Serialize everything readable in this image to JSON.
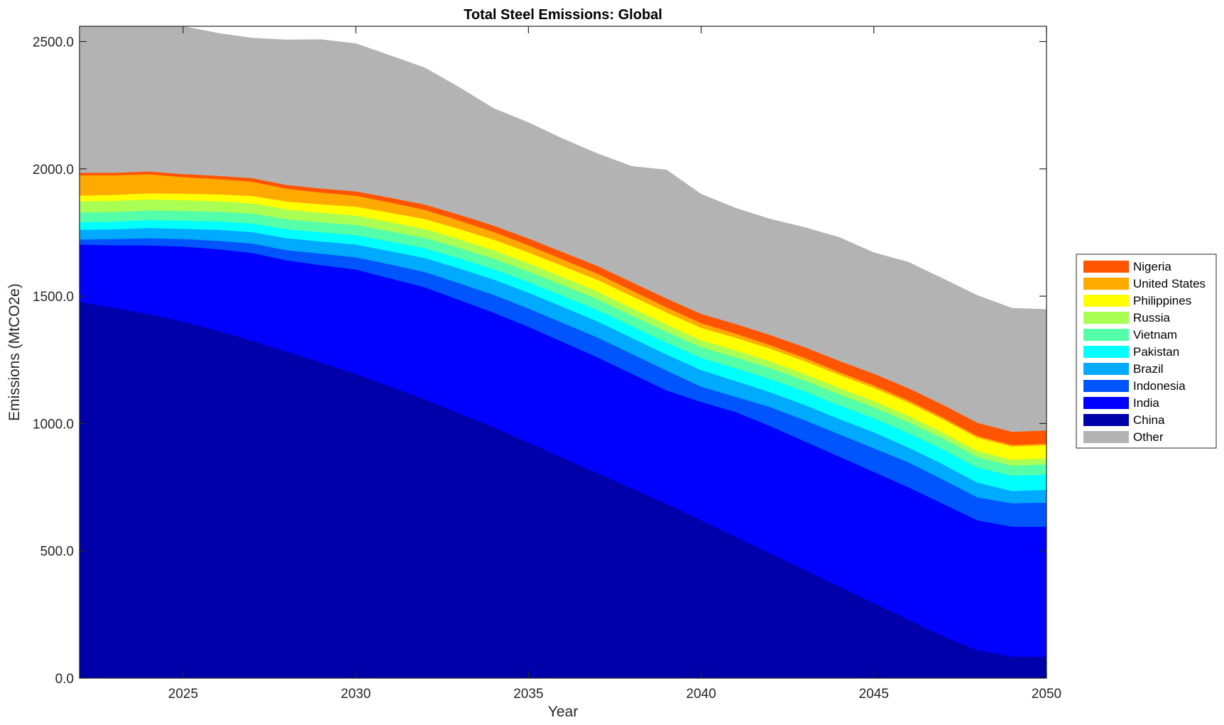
{
  "chart_data": {
    "type": "area",
    "title": "Total Steel Emissions: Global",
    "xlabel": "Year",
    "ylabel": "Emissions (MtCO2e)",
    "xlim": [
      2022,
      2050
    ],
    "ylim": [
      0,
      2560
    ],
    "x_ticks": [
      2025,
      2030,
      2035,
      2040,
      2045,
      2050
    ],
    "x_tick_labels": [
      "2025",
      "2030",
      "2035",
      "2040",
      "2045",
      "2050"
    ],
    "y_ticks": [
      0,
      500,
      1000,
      1500,
      2000,
      2500
    ],
    "y_tick_labels": [
      "0.0",
      "500.0",
      "1000.0",
      "1500.0",
      "2000.0",
      "2500.0"
    ],
    "legend_position": "outside-right",
    "grid": false,
    "x": [
      2022,
      2023,
      2024,
      2025,
      2026,
      2027,
      2028,
      2029,
      2030,
      2031,
      2032,
      2033,
      2034,
      2035,
      2036,
      2037,
      2038,
      2039,
      2040,
      2041,
      2042,
      2043,
      2044,
      2045,
      2046,
      2047,
      2048,
      2049,
      2050
    ],
    "series": [
      {
        "name": "China",
        "color": "#0000AA",
        "values": [
          1478,
          1455,
          1430,
          1400,
          1365,
          1325,
          1283,
          1240,
          1195,
          1145,
          1095,
          1040,
          985,
          925,
          865,
          805,
          745,
          685,
          620,
          555,
          490,
          425,
          360,
          295,
          230,
          165,
          110,
          85,
          85
        ]
      },
      {
        "name": "India",
        "color": "#0000FF",
        "values": [
          225,
          245,
          270,
          295,
          320,
          345,
          358,
          382,
          410,
          425,
          440,
          445,
          450,
          455,
          455,
          455,
          450,
          445,
          465,
          490,
          500,
          505,
          510,
          515,
          520,
          520,
          510,
          510,
          510
        ]
      },
      {
        "name": "Indonesia",
        "color": "#0055FF",
        "values": [
          20,
          25,
          28,
          30,
          33,
          37,
          40,
          45,
          48,
          55,
          60,
          66,
          70,
          72,
          75,
          78,
          78,
          78,
          60,
          60,
          75,
          83,
          88,
          93,
          98,
          95,
          90,
          92,
          95
        ]
      },
      {
        "name": "Brazil",
        "color": "#00AAFF",
        "values": [
          38,
          38,
          40,
          40,
          43,
          45,
          47,
          48,
          50,
          52,
          55,
          58,
          60,
          62,
          63,
          63,
          63,
          63,
          65,
          62,
          58,
          60,
          60,
          63,
          58,
          60,
          58,
          48,
          50
        ]
      },
      {
        "name": "Pakistan",
        "color": "#00FFFF",
        "values": [
          30,
          30,
          31,
          32,
          33,
          34,
          35,
          36,
          37,
          38,
          39,
          40,
          41,
          42,
          43,
          45,
          46,
          47,
          48,
          50,
          52,
          53,
          54,
          55,
          57,
          58,
          59,
          60,
          60
        ]
      },
      {
        "name": "Vietnam",
        "color": "#55FFAA",
        "values": [
          38,
          38,
          38,
          38,
          38,
          39,
          39,
          39,
          40,
          40,
          40,
          41,
          41,
          41,
          42,
          42,
          42,
          42,
          42,
          43,
          43,
          43,
          43,
          43,
          43,
          43,
          42,
          40,
          40
        ]
      },
      {
        "name": "Russia",
        "color": "#AAFF55",
        "values": [
          44,
          44,
          43,
          42,
          41,
          40,
          39,
          38,
          37,
          36,
          35,
          34,
          33,
          32,
          31,
          30,
          29,
          28,
          27,
          27,
          26,
          25,
          25,
          24,
          24,
          23,
          23,
          23,
          23
        ]
      },
      {
        "name": "Philippines",
        "color": "#FFFF00",
        "values": [
          22,
          23,
          24,
          26,
          27,
          29,
          31,
          33,
          35,
          37,
          39,
          40,
          42,
          43,
          44,
          46,
          47,
          48,
          49,
          50,
          50,
          51,
          51,
          52,
          52,
          52,
          52,
          52,
          52
        ]
      },
      {
        "name": "United States",
        "color": "#FFAA00",
        "values": [
          80,
          77,
          75,
          65,
          60,
          56,
          50,
          46,
          43,
          40,
          36,
          33,
          30,
          28,
          26,
          24,
          22,
          20,
          18,
          16,
          14,
          13,
          11,
          10,
          9,
          8,
          7,
          6,
          6
        ]
      },
      {
        "name": "Nigeria",
        "color": "#FF5500",
        "values": [
          10,
          10,
          11,
          12,
          13,
          14,
          15,
          16,
          17,
          19,
          21,
          23,
          25,
          27,
          29,
          31,
          33,
          35,
          37,
          38,
          40,
          42,
          44,
          46,
          48,
          50,
          52,
          52,
          52
        ]
      },
      {
        "name": "Other",
        "color": "#B3B3B3",
        "values": [
          605,
          610,
          575,
          580,
          560,
          550,
          570,
          585,
          580,
          558,
          537,
          500,
          460,
          455,
          445,
          441,
          455,
          505,
          470,
          455,
          455,
          470,
          485,
          475,
          495,
          495,
          500,
          485,
          475
        ]
      }
    ],
    "legend_order": [
      "Nigeria",
      "United States",
      "Philippines",
      "Russia",
      "Vietnam",
      "Pakistan",
      "Brazil",
      "Indonesia",
      "India",
      "China",
      "Other"
    ]
  }
}
